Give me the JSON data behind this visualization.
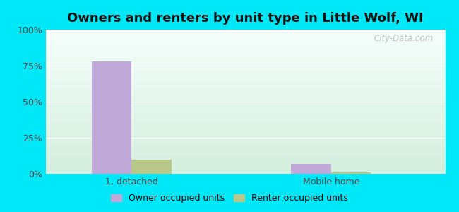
{
  "title": "Owners and renters by unit type in Little Wolf, WI",
  "categories": [
    "1, detached",
    "Mobile home"
  ],
  "series": [
    {
      "name": "Owner occupied units",
      "color": "#c0a8d8",
      "values": [
        78.0,
        7.0
      ]
    },
    {
      "name": "Renter occupied units",
      "color": "#b8c88a",
      "values": [
        10.0,
        1.0
      ]
    }
  ],
  "ylim": [
    0,
    100
  ],
  "yticks": [
    0,
    25,
    50,
    75,
    100
  ],
  "yticklabels": [
    "0%",
    "25%",
    "50%",
    "75%",
    "100%"
  ],
  "outer_bg": "#00e8f8",
  "bar_width": 0.28,
  "title_fontsize": 13,
  "watermark": "City-Data.com",
  "gradient_top": "#f5fffc",
  "gradient_bottom": "#d4eedd"
}
